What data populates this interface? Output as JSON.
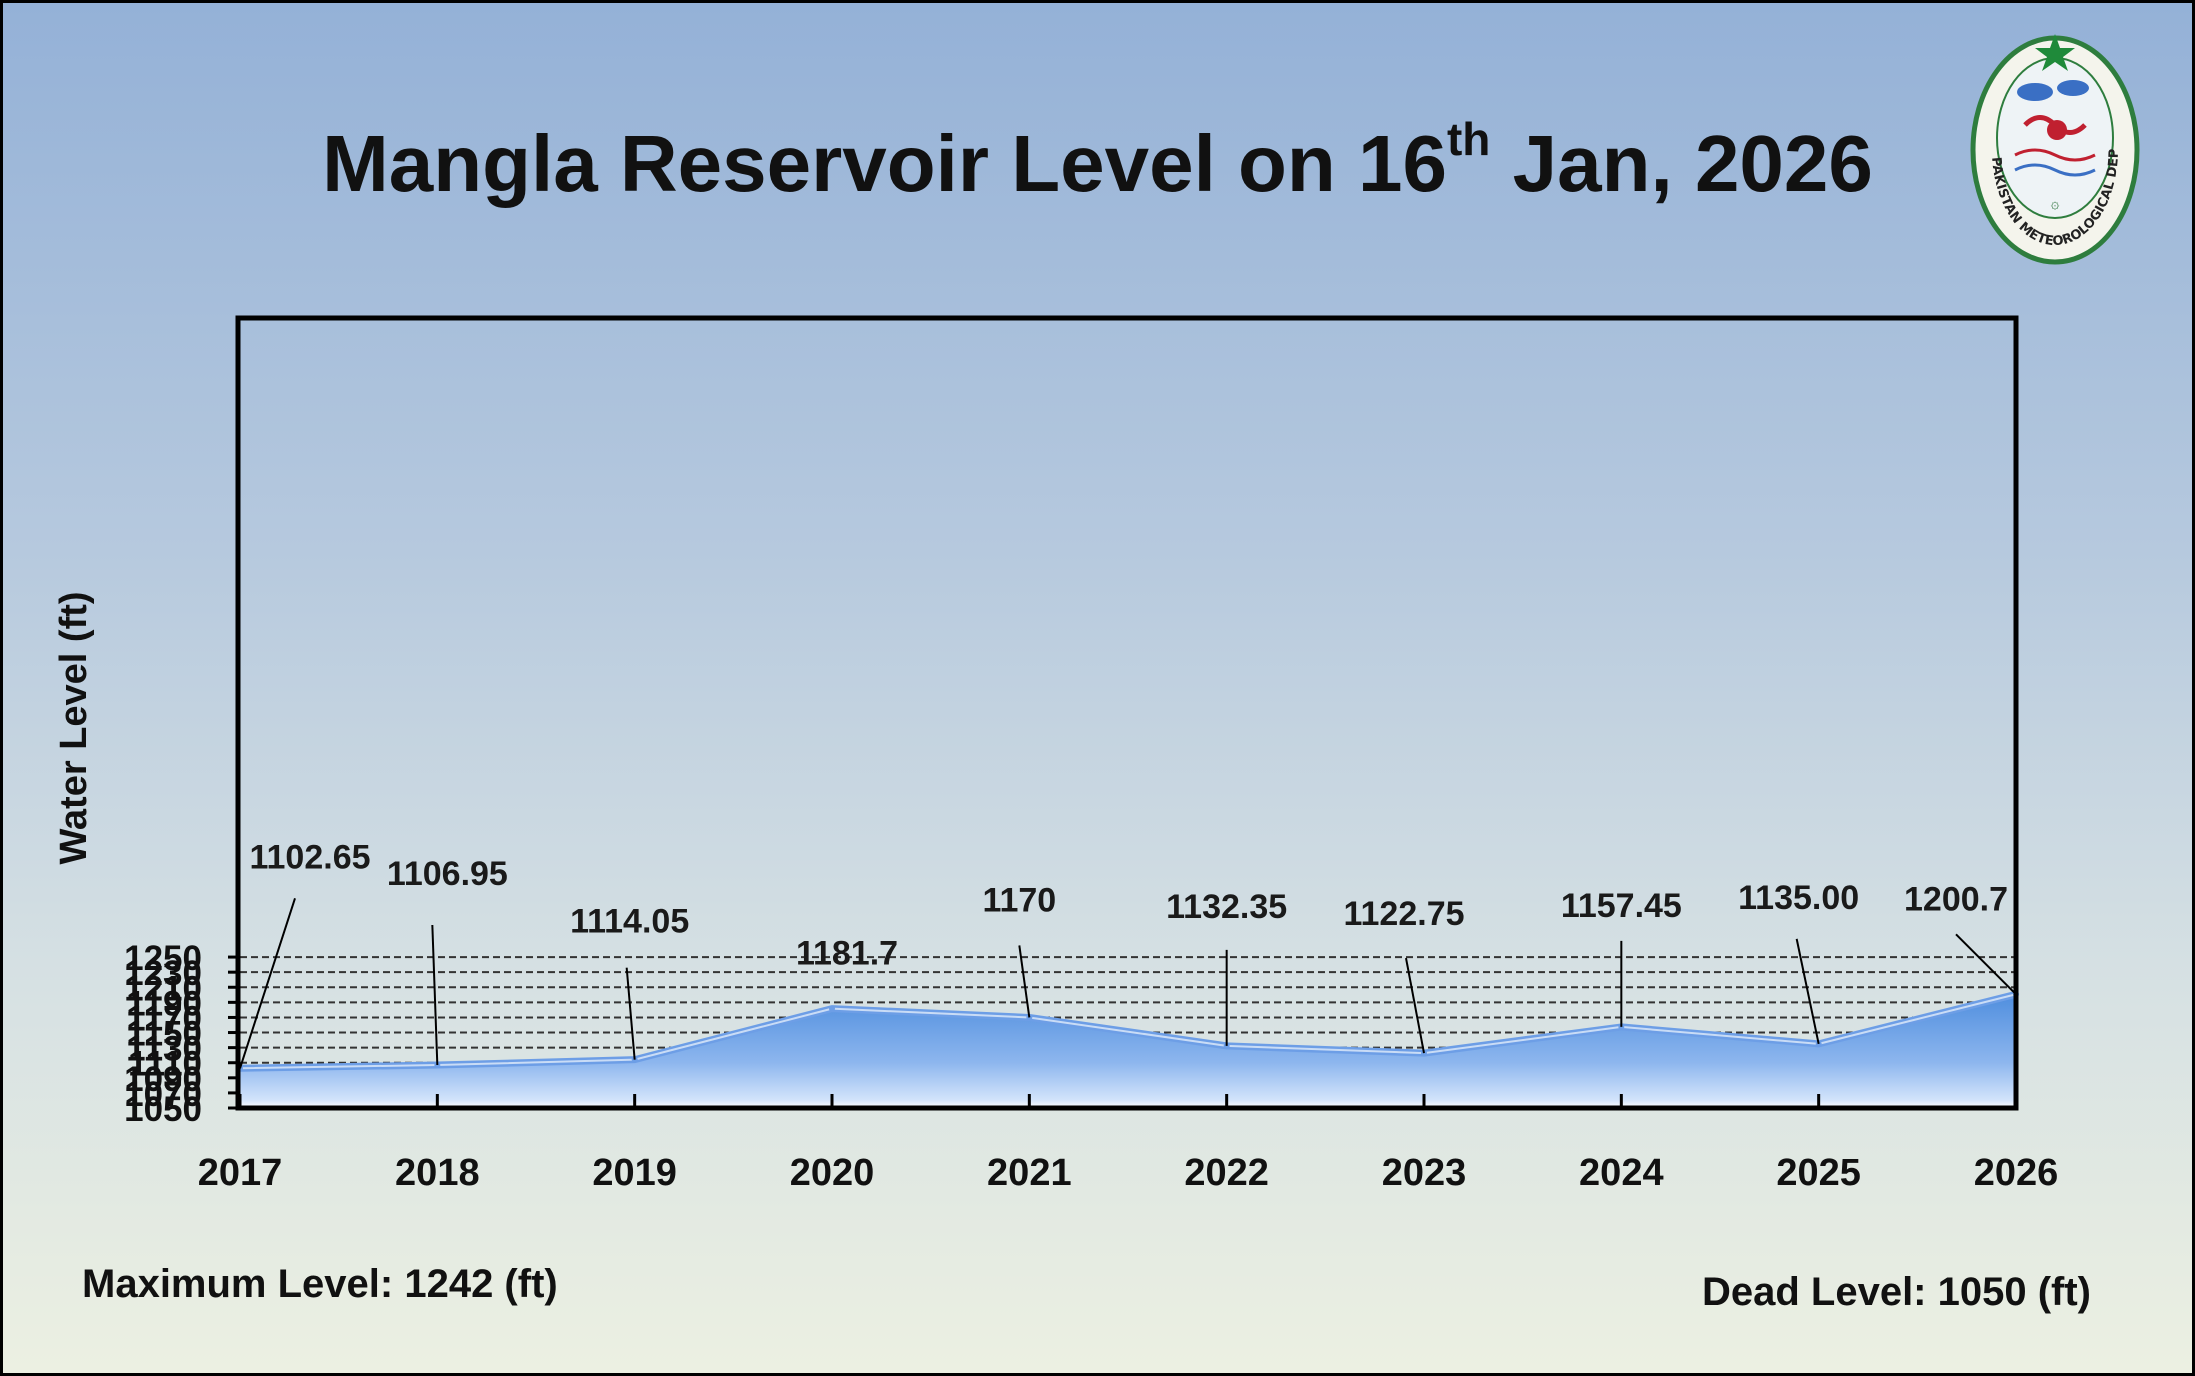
{
  "title": {
    "main": "Mangla Reservoir Level on 16",
    "superscript": "th",
    "suffix": " Jan, 2026"
  },
  "logo": {
    "text": "PAKISTAN METEOROLOGICAL DEPARTMENT",
    "icon": "pmd-emblem-icon"
  },
  "footer": {
    "max_level": "Maximum Level: 1242 (ft)",
    "dead_level": "Dead Level: 1050 (ft)"
  },
  "colors": {
    "area_top": "#5a96e0",
    "area_bottom": "#d8e7fb",
    "line": "#6c9fe6",
    "plot_border": "#000000"
  },
  "chart_data": {
    "type": "area",
    "title": "Mangla Reservoir Level on 16th Jan, 2026",
    "ylabel": "Water Level (ft)",
    "xlabel": "",
    "categories": [
      "2017",
      "2018",
      "2019",
      "2020",
      "2021",
      "2022",
      "2023",
      "2024",
      "2025",
      "2026"
    ],
    "values": [
      1102.65,
      1106.95,
      1114.05,
      1181.7,
      1170,
      1132.35,
      1122.75,
      1157.45,
      1135.0,
      1200.7
    ],
    "data_labels": [
      "1102.65",
      "1106.95",
      "1114.05",
      "1181.7",
      "1170",
      "1132.35",
      "1122.75",
      "1157.45",
      "1135.00",
      "1200.7"
    ],
    "ylim": [
      1050,
      1250
    ],
    "yticks": [
      "1050",
      "1070",
      "1090",
      "1110",
      "1130",
      "1150",
      "1170",
      "1190",
      "1210",
      "1230",
      "1250"
    ],
    "grid": "horizontal dashed",
    "legend": "none"
  }
}
